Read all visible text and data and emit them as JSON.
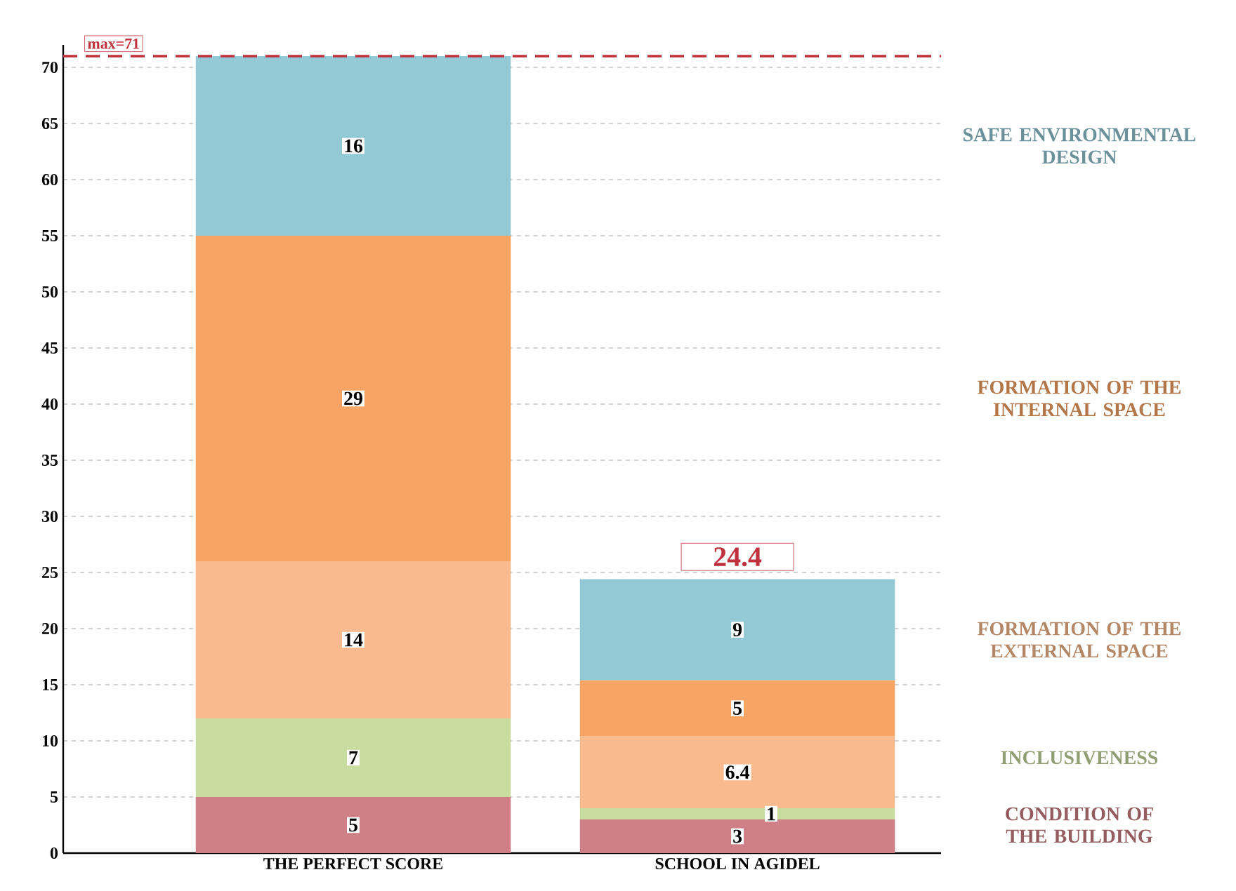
{
  "chart_data": {
    "type": "bar",
    "stacked": true,
    "categories": [
      "THE PERFECT SCORE",
      "SCHOOL IN AGIDEL"
    ],
    "series": [
      {
        "name": "CONDITION OF THE BUILDING",
        "color": "#cf7f86",
        "values": [
          5,
          3
        ]
      },
      {
        "name": "INCLUSIVENESS",
        "color": "#c9dca0",
        "values": [
          7,
          1
        ]
      },
      {
        "name": "FORMATION OF THE EXTERNAL SPACE",
        "color": "#f9bb8d",
        "values": [
          14,
          6.4
        ]
      },
      {
        "name": "FORMATION OF THE INTERNAL SPACE",
        "color": "#f8a465",
        "values": [
          29,
          5
        ]
      },
      {
        "name": "SAFE ENVIRONMENTAL DESIGN",
        "color": "#93c8d5",
        "values": [
          16,
          9
        ]
      }
    ],
    "ylim": [
      0,
      72
    ],
    "yticks": [
      0,
      5,
      10,
      15,
      20,
      25,
      30,
      35,
      40,
      45,
      50,
      55,
      60,
      65,
      70
    ],
    "grid": "y",
    "legend": "right",
    "data_labels": true,
    "totals": [
      null,
      "24.4"
    ],
    "ref_lines": [
      {
        "axis": "y",
        "value": 71,
        "label": "max=71",
        "color": "#c0313d",
        "line_style": "dashed"
      }
    ]
  }
}
